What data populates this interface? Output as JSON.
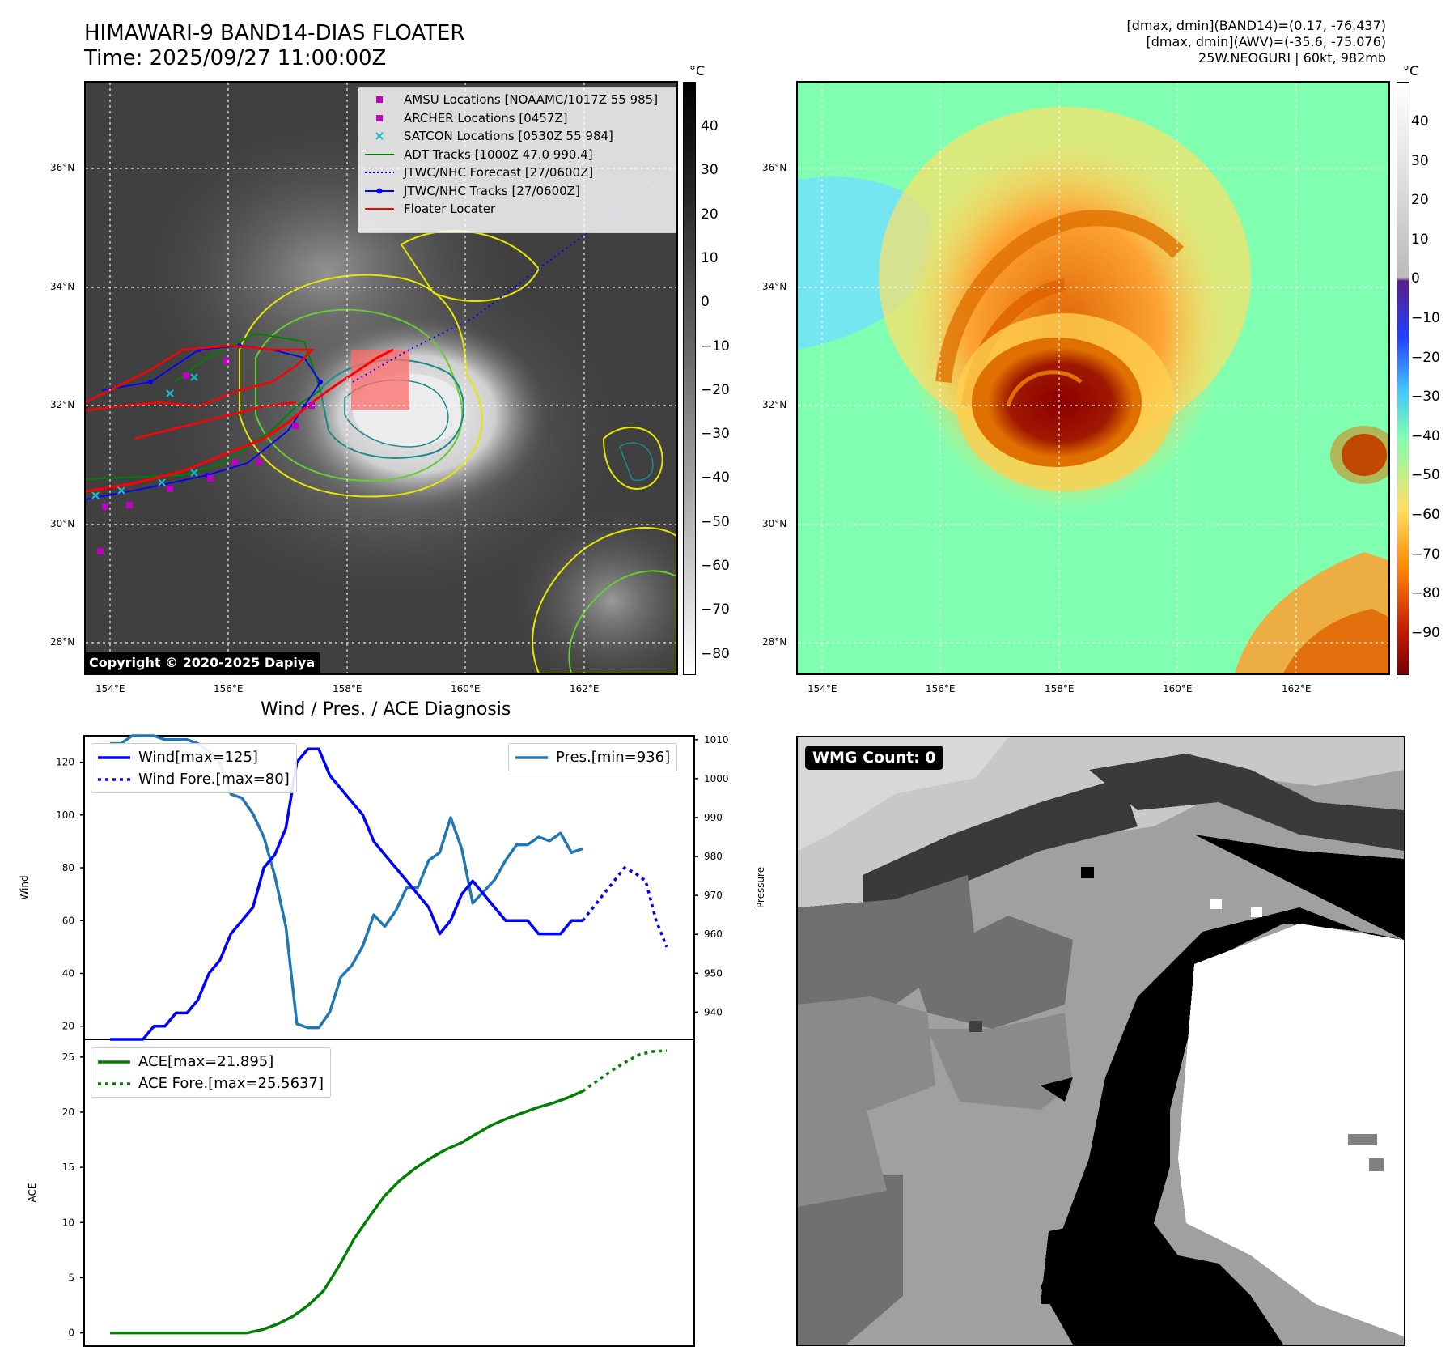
{
  "header": {
    "title_line1": "HIMAWARI-9 BAND14-DIAS FLOATER",
    "title_line2": "Time: 2025/09/27 11:00:00Z",
    "stats_line1": "[dmax, dmin](BAND14)=(0.17, -76.437)",
    "stats_line2": "[dmax, dmin](AWV)=(-35.6, -75.076)",
    "stats_line3": "25W.NEOGURI | 60kt, 982mb"
  },
  "map": {
    "lat_labels": [
      "36°N",
      "34°N",
      "32°N",
      "30°N",
      "28°N"
    ],
    "lon_labels": [
      "154°E",
      "156°E",
      "158°E",
      "160°E",
      "162°E"
    ],
    "copyright": "Copyright © 2020-2025 Dapiya"
  },
  "left_colorbar": {
    "unit": "°C",
    "labels": [
      "40",
      "30",
      "20",
      "10",
      "0",
      "−10",
      "−20",
      "−30",
      "−40",
      "−50",
      "−60",
      "−70",
      "−80"
    ]
  },
  "right_colorbar": {
    "unit": "°C",
    "labels": [
      "40",
      "30",
      "20",
      "10",
      "0",
      "−10",
      "−20",
      "−30",
      "−40",
      "−50",
      "−60",
      "−70",
      "−80",
      "−90"
    ]
  },
  "legend": [
    {
      "label": "AMSU Locations [NOAAMC/1017Z 55 985]",
      "kind": "square",
      "color": "#c000c0"
    },
    {
      "label": "ARCHER Locations [0457Z]",
      "kind": "square",
      "color": "#c000c0"
    },
    {
      "label": "SATCON Locations [0530Z 55 984]",
      "kind": "x",
      "color": "#17becf"
    },
    {
      "label": "ADT Tracks [1000Z 47.0 990.4]",
      "kind": "line",
      "color": "#008000"
    },
    {
      "label": "JTWC/NHC Forecast [27/0600Z]",
      "kind": "dotted",
      "color": "#0000ff"
    },
    {
      "label": "JTWC/NHC Tracks [27/0600Z]",
      "kind": "line-dot",
      "color": "#0000ff"
    },
    {
      "label": "Floater Locater",
      "kind": "line",
      "color": "#ff0000"
    }
  ],
  "diagnosis_title": "Wind / Pres. / ACE Diagnosis",
  "wmg": {
    "badge": "WMG Count: 0"
  },
  "chart_data": [
    {
      "type": "line",
      "title": "Wind / Pres. / ACE Diagnosis",
      "ylabel": "Wind",
      "ylabel_right": "Pressure",
      "ylim": [
        15,
        130
      ],
      "ylim_right": [
        933,
        1011
      ],
      "yticks": [
        "20",
        "40",
        "60",
        "80",
        "100",
        "120"
      ],
      "yticks_right": [
        "940",
        "950",
        "960",
        "970",
        "980",
        "990",
        "1000",
        "1010"
      ],
      "series": [
        {
          "name": "Wind[max=125]",
          "color": "#0000ff",
          "style": "solid",
          "axis": "left",
          "values": [
            15,
            15,
            15,
            15,
            20,
            20,
            25,
            25,
            30,
            40,
            45,
            55,
            60,
            65,
            80,
            85,
            95,
            120,
            125,
            125,
            115,
            110,
            105,
            100,
            90,
            85,
            80,
            75,
            70,
            65,
            55,
            60,
            70,
            75,
            70,
            65,
            60,
            60,
            60,
            55,
            55,
            55,
            60,
            60
          ]
        },
        {
          "name": "Wind Fore.[max=80]",
          "color": "#0000ff",
          "style": "dotted",
          "axis": "left",
          "values": [
            60,
            65,
            70,
            75,
            80,
            78,
            75,
            60,
            50
          ]
        },
        {
          "name": "Pres.[min=936]",
          "color": "#1f77b4",
          "style": "solid",
          "axis": "right",
          "values": [
            1009,
            1009,
            1011,
            1011,
            1011,
            1010,
            1010,
            1010,
            1009,
            1007,
            1004,
            996,
            995,
            991,
            985,
            975,
            962,
            937,
            936,
            936,
            940,
            949,
            952,
            957,
            965,
            962,
            966,
            972,
            972,
            979,
            981,
            990,
            982,
            968,
            971,
            974,
            979,
            983,
            983,
            985,
            984,
            986,
            981,
            982
          ]
        }
      ]
    },
    {
      "type": "line",
      "ylabel": "ACE",
      "ylim": [
        -1.2,
        26.6
      ],
      "yticks": [
        "0",
        "5",
        "10",
        "15",
        "20",
        "25"
      ],
      "series": [
        {
          "name": "ACE[max=21.895]",
          "color": "#008000",
          "style": "solid",
          "values": [
            0,
            0,
            0,
            0,
            0,
            0,
            0,
            0,
            0,
            0,
            0.3,
            0.8,
            1.5,
            2.5,
            3.8,
            6,
            8.5,
            10.5,
            12.4,
            13.8,
            14.9,
            15.8,
            16.6,
            17.2,
            18,
            18.8,
            19.4,
            19.9,
            20.4,
            20.8,
            21.3,
            21.895
          ]
        },
        {
          "name": "ACE Fore.[max=25.5637]",
          "color": "#008000",
          "style": "dotted",
          "values": [
            21.895,
            22.8,
            23.7,
            24.5,
            25.2,
            25.5,
            25.5637
          ]
        }
      ]
    }
  ]
}
